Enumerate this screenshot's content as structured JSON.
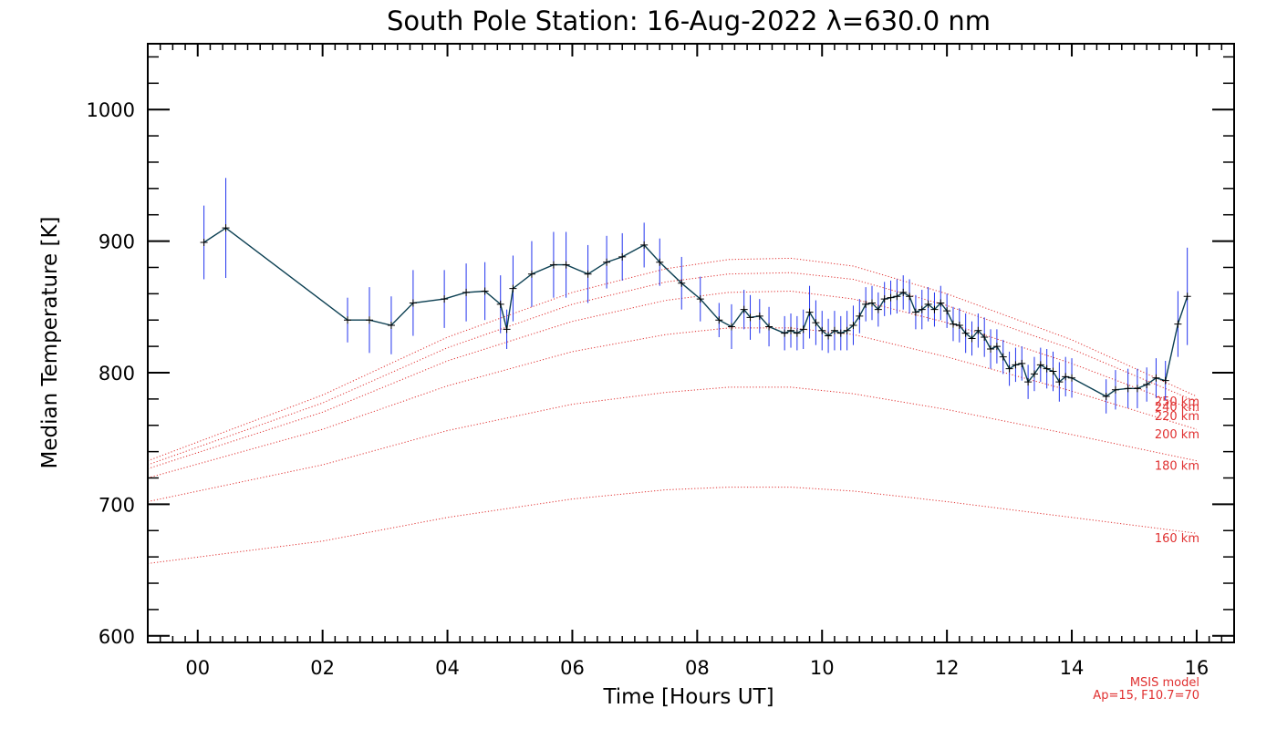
{
  "chart_data": {
    "type": "line",
    "title": "South Pole Station: 16-Aug-2022 λ=630.0 nm",
    "xlabel": "Time [Hours UT]",
    "ylabel": "Median Temperature [K]",
    "xlim": [
      -0.8,
      16.6
    ],
    "ylim": [
      595,
      1050
    ],
    "xticks": [
      0,
      2,
      4,
      6,
      8,
      10,
      12,
      14,
      16
    ],
    "xtick_labels": [
      "00",
      "02",
      "04",
      "06",
      "08",
      "10",
      "12",
      "14",
      "16"
    ],
    "yticks": [
      600,
      700,
      800,
      900,
      1000
    ],
    "ytick_labels": [
      "600",
      "700",
      "800",
      "900",
      "1000"
    ],
    "colors": {
      "data": "#0b3f52",
      "error": "#2233ee",
      "marker": "#000000",
      "model": "#e03030"
    },
    "measurements": {
      "name": "Median Temperature",
      "x": [
        0.1,
        0.45,
        2.4,
        2.75,
        3.1,
        3.45,
        3.95,
        4.3,
        4.6,
        4.85,
        4.95,
        5.05,
        5.35,
        5.7,
        5.9,
        6.25,
        6.55,
        6.8,
        7.15,
        7.4,
        7.75,
        8.05,
        8.35,
        8.55,
        8.75,
        8.85,
        9.0,
        9.15,
        9.4,
        9.5,
        9.6,
        9.7,
        9.8,
        9.9,
        10.0,
        10.1,
        10.2,
        10.3,
        10.4,
        10.5,
        10.6,
        10.7,
        10.8,
        10.9,
        11.0,
        11.1,
        11.2,
        11.3,
        11.4,
        11.5,
        11.6,
        11.7,
        11.8,
        11.9,
        12.0,
        12.1,
        12.2,
        12.3,
        12.4,
        12.5,
        12.6,
        12.7,
        12.8,
        12.9,
        13.0,
        13.1,
        13.2,
        13.3,
        13.4,
        13.5,
        13.6,
        13.7,
        13.8,
        13.9,
        14.0,
        14.55,
        14.7,
        14.9,
        15.05,
        15.2,
        15.35,
        15.5,
        15.7,
        15.85
      ],
      "y": [
        899,
        910,
        840,
        840,
        836,
        853,
        856,
        861,
        862,
        852,
        833,
        864,
        875,
        882,
        882,
        875,
        884,
        888,
        897,
        884,
        868,
        856,
        840,
        835,
        848,
        842,
        843,
        835,
        830,
        832,
        830,
        833,
        846,
        838,
        832,
        828,
        832,
        830,
        832,
        836,
        843,
        852,
        853,
        848,
        856,
        857,
        858,
        861,
        858,
        846,
        848,
        852,
        848,
        853,
        847,
        837,
        836,
        830,
        826,
        832,
        827,
        818,
        820,
        812,
        803,
        806,
        807,
        793,
        799,
        806,
        803,
        801,
        793,
        797,
        796,
        782,
        787,
        788,
        788,
        791,
        796,
        794,
        837,
        858
      ],
      "err": [
        28,
        38,
        17,
        25,
        22,
        25,
        22,
        22,
        22,
        22,
        15,
        25,
        25,
        25,
        25,
        22,
        20,
        18,
        17,
        18,
        20,
        17,
        13,
        17,
        15,
        17,
        13,
        15,
        13,
        13,
        13,
        15,
        20,
        17,
        15,
        13,
        15,
        13,
        15,
        15,
        13,
        13,
        13,
        13,
        13,
        13,
        13,
        13,
        13,
        13,
        15,
        13,
        13,
        13,
        13,
        13,
        13,
        15,
        13,
        13,
        15,
        15,
        13,
        13,
        13,
        13,
        13,
        13,
        13,
        13,
        15,
        15,
        15,
        15,
        15,
        13,
        15,
        15,
        15,
        13,
        15,
        15,
        25,
        37
      ]
    },
    "model": {
      "title": "MSIS model",
      "params": "Ap=15, F10.7=70",
      "series": [
        {
          "name": "160 km",
          "x": [
            -0.8,
            2,
            4,
            6,
            7.5,
            8.5,
            9.5,
            10.5,
            12,
            14,
            16
          ],
          "values": [
            655,
            672,
            690,
            704,
            711,
            713,
            713,
            710,
            702,
            690,
            678
          ]
        },
        {
          "name": "180 km",
          "x": [
            -0.8,
            2,
            4,
            6,
            7.5,
            8.5,
            9.5,
            10.5,
            12,
            14,
            16
          ],
          "values": [
            702,
            730,
            756,
            776,
            785,
            789,
            789,
            784,
            772,
            753,
            733
          ]
        },
        {
          "name": "200 km",
          "x": [
            -0.8,
            2,
            4,
            6,
            7.5,
            8.5,
            9.5,
            10.5,
            12,
            14,
            16
          ],
          "values": [
            720,
            757,
            790,
            816,
            829,
            834,
            834,
            829,
            812,
            786,
            757
          ]
        },
        {
          "name": "220 km",
          "x": [
            -0.8,
            2,
            4,
            6,
            7.5,
            8.5,
            9.5,
            10.5,
            12,
            14,
            16
          ],
          "values": [
            727,
            770,
            809,
            839,
            855,
            861,
            862,
            856,
            838,
            807,
            771
          ]
        },
        {
          "name": "240 km",
          "x": [
            -0.8,
            2,
            4,
            6,
            7.5,
            8.5,
            9.5,
            10.5,
            12,
            14,
            16
          ],
          "values": [
            730,
            777,
            819,
            852,
            869,
            875,
            876,
            871,
            851,
            818,
            778
          ]
        },
        {
          "name": "250 km",
          "x": [
            -0.8,
            2,
            4,
            6,
            7.5,
            8.5,
            9.5,
            10.5,
            12,
            14,
            16
          ],
          "values": [
            733,
            783,
            827,
            861,
            879,
            886,
            887,
            881,
            860,
            825,
            782
          ]
        }
      ]
    }
  }
}
